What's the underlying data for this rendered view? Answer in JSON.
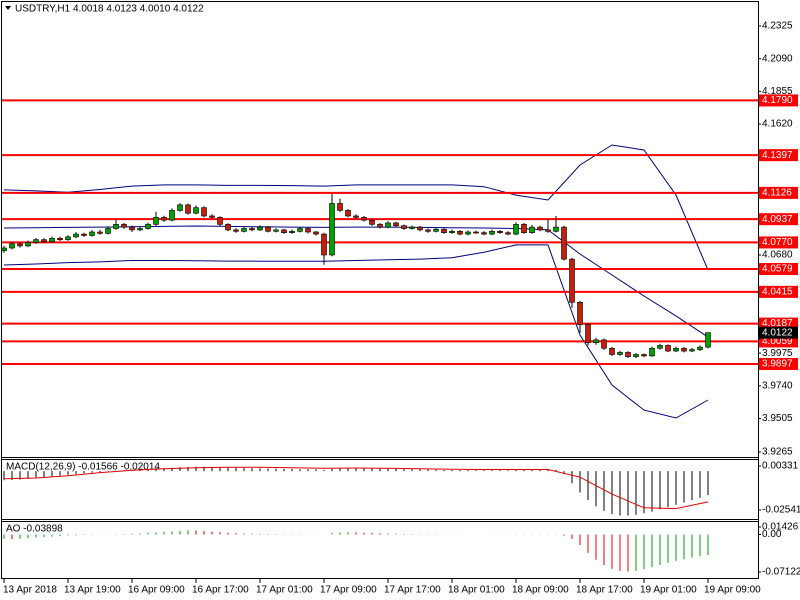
{
  "chart_data": [
    {
      "type": "candlestick",
      "title": "USDTRY,H1 4.0018 4.0123 4.0010 4.0122",
      "up_color": "#00a000",
      "down_color": "#c0200c",
      "open": [
        4.071,
        4.073,
        4.076,
        4.0745,
        4.077,
        4.079,
        4.0775,
        4.08,
        4.079,
        4.081,
        4.083,
        4.082,
        4.0845,
        4.0835,
        4.087,
        4.09,
        4.088,
        4.086,
        4.087,
        4.09,
        4.095,
        4.093,
        4.1,
        4.104,
        4.098,
        4.102,
        4.096,
        4.095,
        4.09,
        4.086,
        4.085,
        4.087,
        4.086,
        4.088,
        4.085,
        4.086,
        4.084,
        4.085,
        4.087,
        4.0845,
        4.083,
        4.068,
        4.105,
        4.1,
        4.096,
        4.095,
        4.093,
        4.09,
        4.088,
        4.091,
        4.089,
        4.087,
        4.088,
        4.086,
        4.085,
        4.0865,
        4.084,
        4.085,
        4.083,
        4.0845,
        4.084,
        4.083,
        4.085,
        4.084,
        4.083,
        4.09,
        4.084,
        4.088,
        4.086,
        4.085,
        4.088,
        4.065,
        4.034,
        4.018,
        4.005,
        4.007,
        4.001,
        3.9965,
        3.998,
        3.995,
        3.9965,
        3.9955,
        4.001,
        4.003,
        3.999,
        4.001,
        3.999,
        4.0,
        4.0018
      ],
      "high": [
        4.0745,
        4.0775,
        4.0772,
        4.0784,
        4.0802,
        4.08,
        4.0812,
        4.081,
        4.0822,
        4.0845,
        4.084,
        4.0858,
        4.086,
        4.0885,
        4.093,
        4.091,
        4.0892,
        4.0885,
        4.0912,
        4.099,
        4.0962,
        4.1015,
        4.1052,
        4.1048,
        4.1035,
        4.1028,
        4.0972,
        4.0958,
        4.0908,
        4.0872,
        4.0882,
        4.088,
        4.0892,
        4.0888,
        4.0872,
        4.0868,
        4.0862,
        4.0882,
        4.0878,
        4.0852,
        4.084,
        4.112,
        4.1085,
        4.101,
        4.0972,
        4.096,
        4.094,
        4.091,
        4.0922,
        4.0918,
        4.0898,
        4.0892,
        4.0888,
        4.087,
        4.0878,
        4.0872,
        4.0862,
        4.0858,
        4.0856,
        4.0855,
        4.085,
        4.0862,
        4.086,
        4.085,
        4.0915,
        4.091,
        4.0895,
        4.089,
        4.094,
        4.096,
        4.089,
        4.066,
        4.035,
        4.019,
        4.0085,
        4.008,
        4.002,
        3.9992,
        3.9988,
        3.9975,
        3.9972,
        4.0022,
        4.0042,
        4.0038,
        4.0022,
        4.0018,
        4.0012,
        4.003,
        4.0123
      ],
      "low": [
        4.0695,
        4.072,
        4.0733,
        4.0736,
        4.076,
        4.0765,
        4.0768,
        4.078,
        4.0782,
        4.08,
        4.081,
        4.0812,
        4.0825,
        4.0828,
        4.086,
        4.0868,
        4.0845,
        4.085,
        4.0862,
        4.089,
        4.0918,
        4.0922,
        4.099,
        4.097,
        4.0972,
        4.095,
        4.094,
        4.089,
        4.085,
        4.084,
        4.0842,
        4.085,
        4.0852,
        4.0842,
        4.0842,
        4.0832,
        4.0832,
        4.0842,
        4.0835,
        4.082,
        4.061,
        4.067,
        4.099,
        4.095,
        4.094,
        4.092,
        4.089,
        4.087,
        4.0872,
        4.088,
        4.086,
        4.0862,
        4.085,
        4.084,
        4.0842,
        4.0832,
        4.0832,
        4.0822,
        4.0822,
        4.0832,
        4.0822,
        4.0822,
        4.0832,
        4.0822,
        4.0822,
        4.0832,
        4.0832,
        4.085,
        4.084,
        4.0842,
        4.064,
        4.03,
        4.012,
        4.003,
        4.0035,
        3.9998,
        3.9955,
        3.9955,
        3.994,
        3.994,
        3.9945,
        3.9948,
        4.0,
        3.9982,
        3.9982,
        3.998,
        3.9982,
        3.999,
        4.001
      ],
      "close": [
        4.073,
        4.076,
        4.0745,
        4.077,
        4.079,
        4.0775,
        4.08,
        4.079,
        4.081,
        4.083,
        4.082,
        4.0845,
        4.0835,
        4.087,
        4.09,
        4.088,
        4.086,
        4.087,
        4.09,
        4.095,
        4.093,
        4.1,
        4.104,
        4.098,
        4.102,
        4.096,
        4.095,
        4.09,
        4.086,
        4.085,
        4.087,
        4.086,
        4.088,
        4.085,
        4.086,
        4.084,
        4.085,
        4.087,
        4.0845,
        4.083,
        4.068,
        4.105,
        4.1,
        4.096,
        4.095,
        4.093,
        4.09,
        4.088,
        4.091,
        4.089,
        4.087,
        4.088,
        4.086,
        4.085,
        4.0865,
        4.084,
        4.085,
        4.083,
        4.0845,
        4.084,
        4.083,
        4.085,
        4.084,
        4.083,
        4.09,
        4.084,
        4.088,
        4.086,
        4.085,
        4.088,
        4.065,
        4.034,
        4.018,
        4.005,
        4.007,
        4.001,
        3.9965,
        3.998,
        3.995,
        3.9965,
        3.9955,
        4.001,
        4.003,
        3.999,
        4.001,
        3.999,
        4.0,
        4.0018,
        4.0122
      ],
      "bands": {
        "color": "#000080",
        "x": [
          0,
          4,
          8,
          12,
          16,
          20,
          24,
          28,
          32,
          36,
          40,
          44,
          48,
          52,
          56,
          60,
          64,
          68,
          72,
          76,
          80,
          84,
          88
        ],
        "upper": [
          4.1147,
          4.114,
          4.113,
          4.115,
          4.1175,
          4.1183,
          4.1183,
          4.118,
          4.118,
          4.1178,
          4.1175,
          4.1183,
          4.1183,
          4.1183,
          4.1183,
          4.117,
          4.111,
          4.1075,
          4.1326,
          4.147,
          4.1434,
          4.1111,
          4.0572
        ],
        "middle": [
          4.0874,
          4.0876,
          4.0878,
          4.088,
          4.0882,
          4.0885,
          4.0888,
          4.0885,
          4.0882,
          4.088,
          4.0878,
          4.088,
          4.088,
          4.0878,
          4.0876,
          4.0874,
          4.087,
          4.086,
          4.0687,
          4.0536,
          4.0385,
          4.0242,
          4.009
        ],
        "lower": [
          4.0608,
          4.0615,
          4.0625,
          4.063,
          4.064,
          4.064,
          4.0638,
          4.0636,
          4.0635,
          4.0635,
          4.0635,
          4.064,
          4.0645,
          4.065,
          4.066,
          4.07,
          4.0752,
          4.0752,
          4.0105,
          3.9746,
          3.9566,
          3.9509,
          3.9638
        ]
      },
      "levels": [
        {
          "value": 4.179,
          "label": "4.1790"
        },
        4.1397,
        4.1126,
        4.0937,
        {
          "value": 4.077,
          "label": "4.0770"
        },
        4.0579,
        4.0415,
        4.0187,
        4.0059,
        3.9897
      ],
      "level_color": "#ff0000",
      "last_price": 4.0122,
      "ylim": [
        3.9236,
        4.2497
      ],
      "yticks": [
        4.2325,
        {
          "value": 4.209,
          "label": "4.2090"
        },
        4.1855,
        {
          "value": 4.162,
          "label": "4.1620"
        },
        {
          "value": 4.068,
          "label": "4.0680"
        },
        3.9975,
        {
          "value": 3.974,
          "label": "3.9740"
        },
        3.9505,
        3.9265
      ],
      "xlim": [
        -0.25,
        94.25
      ],
      "xticks": [
        {
          "value": 0,
          "label": "13 Apr 2018"
        },
        {
          "value": 8,
          "label": "13 Apr 19:00"
        },
        {
          "value": 16,
          "label": "16 Apr 09:00"
        },
        {
          "value": 24,
          "label": "16 Apr 17:00"
        },
        {
          "value": 32,
          "label": "17 Apr 01:00"
        },
        {
          "value": 40,
          "label": "17 Apr 09:00"
        },
        {
          "value": 48,
          "label": "17 Apr 17:00"
        },
        {
          "value": 56,
          "label": "18 Apr 01:00"
        },
        {
          "value": 64,
          "label": "18 Apr 09:00"
        },
        {
          "value": 72,
          "label": "18 Apr 17:00"
        },
        {
          "value": 80,
          "label": "19 Apr 01:00"
        },
        {
          "value": 88,
          "label": "19 Apr 09:00"
        }
      ]
    },
    {
      "type": "macd",
      "title": "MACD(12,26,9) -0.01566 -0.02014",
      "color": "#000000",
      "signal_color": "#e00000",
      "values": [
        -0.006,
        -0.0058,
        -0.0055,
        -0.005,
        -0.0045,
        -0.004,
        -0.0035,
        -0.003,
        -0.0025,
        -0.002,
        -0.0015,
        -0.001,
        -0.0006,
        -0.0002,
        0.0002,
        0.0005,
        0.0008,
        0.001,
        0.0013,
        0.0016,
        0.0019,
        0.0022,
        0.0025,
        0.0027,
        0.0028,
        0.0028,
        0.0027,
        0.0025,
        0.0023,
        0.0021,
        0.002,
        0.0019,
        0.0018,
        0.0017,
        0.0016,
        0.0015,
        0.0014,
        0.0013,
        0.0012,
        0.0011,
        0.0008,
        0.0015,
        0.0018,
        0.0019,
        0.0019,
        0.0018,
        0.0017,
        0.0016,
        0.0015,
        0.0014,
        0.0013,
        0.0012,
        0.0011,
        0.001,
        0.0009,
        0.0008,
        0.0008,
        0.0007,
        0.0007,
        0.0006,
        0.0006,
        0.0006,
        0.0006,
        0.0005,
        0.0007,
        0.0007,
        0.0008,
        0.0008,
        0.0008,
        0.0009,
        -0.002,
        -0.008,
        -0.014,
        -0.019,
        -0.023,
        -0.026,
        -0.028,
        -0.029,
        -0.029,
        -0.0285,
        -0.0275,
        -0.0265,
        -0.025,
        -0.0235,
        -0.022,
        -0.0205,
        -0.019,
        -0.0175,
        -0.01566
      ],
      "signal": {
        "x": [
          0,
          4,
          8,
          12,
          16,
          20,
          24,
          28,
          32,
          36,
          40,
          44,
          48,
          52,
          56,
          60,
          64,
          68,
          72,
          76,
          80,
          84,
          88
        ],
        "values": [
          -0.005,
          -0.0045,
          -0.003,
          -0.001,
          0.0005,
          0.0015,
          0.0022,
          0.0025,
          0.0025,
          0.0022,
          0.0018,
          0.002,
          0.0018,
          0.0015,
          0.0012,
          0.001,
          0.001,
          0.001,
          -0.004,
          -0.015,
          -0.024,
          -0.0245,
          -0.02014
        ]
      },
      "ylim": [
        -0.03063,
        0.00723
      ],
      "yticks": [
        0.00331,
        -0.02541
      ]
    },
    {
      "type": "ao",
      "title": "AO -0.03898",
      "up_color": "#00a000",
      "down_color": "#e00000",
      "values": [
        -0.008,
        -0.0085,
        -0.008,
        -0.007,
        -0.006,
        -0.005,
        -0.004,
        -0.003,
        -0.002,
        -0.0015,
        -0.001,
        -0.0005,
        -0.0003,
        0.0002,
        0.0005,
        0.001,
        0.0015,
        0.002,
        0.003,
        0.004,
        0.005,
        0.006,
        0.007,
        0.008,
        0.0075,
        0.0065,
        0.0055,
        0.0045,
        0.0035,
        0.0025,
        0.002,
        0.0015,
        0.0012,
        0.001,
        0.0008,
        0.0006,
        0.0005,
        0.0004,
        0.0003,
        0.0002,
        0.0001,
        0.003,
        0.004,
        0.0045,
        0.004,
        0.0035,
        0.003,
        0.0025,
        0.002,
        0.0015,
        0.001,
        0.0008,
        0.0006,
        0.0005,
        0.0004,
        0.0003,
        0.0002,
        0.0002,
        0.0001,
        0.0001,
        0.0001,
        0.0002,
        0.0002,
        0.0003,
        0.0004,
        0.0004,
        0.0005,
        0.0005,
        0.0006,
        0.0006,
        -0.002,
        -0.008,
        -0.02,
        -0.035,
        -0.048,
        -0.058,
        -0.065,
        -0.069,
        -0.07,
        -0.069,
        -0.066,
        -0.062,
        -0.058,
        -0.054,
        -0.05,
        -0.047,
        -0.044,
        -0.041,
        -0.03898
      ],
      "ylim": [
        -0.08262,
        0.02376
      ],
      "yticks": [
        0.01426,
        {
          "value": 0,
          "label": "0.00"
        },
        -0.07122
      ]
    }
  ]
}
